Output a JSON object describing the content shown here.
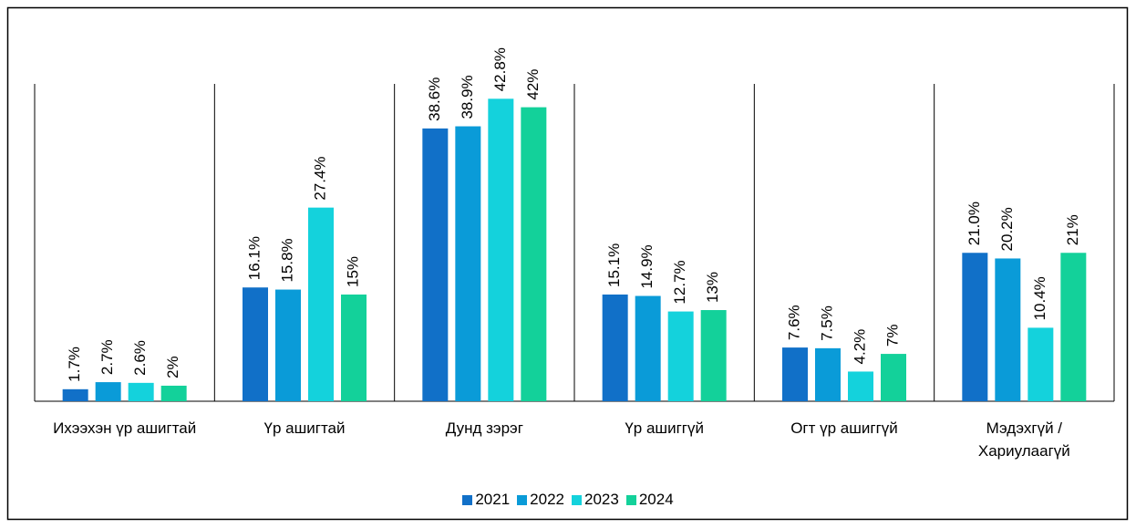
{
  "chart_data": {
    "type": "bar",
    "categories": [
      "Ихээхэн үр ашигтай",
      "Үр ашигтай",
      "Дунд зэрэг",
      "Үр ашиггүй",
      "Огт үр ашиггүй",
      "Мэдэхгүй / Хариулаагүй"
    ],
    "series": [
      {
        "name": "2021",
        "color": "#1170c8",
        "values": [
          1.7,
          16.1,
          38.6,
          15.1,
          7.6,
          21.0
        ],
        "value_labels": [
          "1.7%",
          "16.1%",
          "38.6%",
          "15.1%",
          "7.6%",
          "21.0%"
        ]
      },
      {
        "name": "2022",
        "color": "#0a9bd8",
        "values": [
          2.7,
          15.8,
          38.9,
          14.9,
          7.5,
          20.2
        ],
        "value_labels": [
          "2.7%",
          "15.8%",
          "38.9%",
          "14.9%",
          "7.5%",
          "20.2%"
        ]
      },
      {
        "name": "2023",
        "color": "#14d2dc",
        "values": [
          2.6,
          27.4,
          42.8,
          12.7,
          4.2,
          10.4
        ],
        "value_labels": [
          "2.6%",
          "27.4%",
          "42.8%",
          "12.7%",
          "4.2%",
          "10.4%"
        ]
      },
      {
        "name": "2024",
        "color": "#13d19a",
        "values": [
          2.2,
          15.1,
          41.6,
          12.9,
          6.7,
          21.0
        ],
        "value_labels": [
          "2%",
          "15%",
          "42%",
          "13%",
          "7%",
          "21%"
        ]
      }
    ],
    "legend": "bottom"
  }
}
